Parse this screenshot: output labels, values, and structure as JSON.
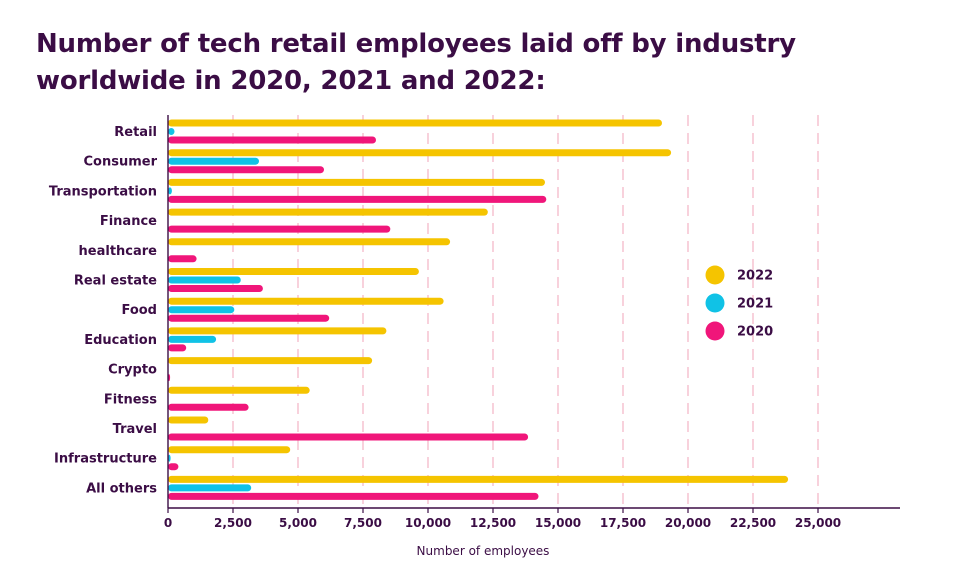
{
  "chart_data": {
    "type": "bar",
    "orientation": "horizontal",
    "title": "Number of tech retail employees laid off by industry worldwide in 2020, 2021 and 2022:",
    "xlabel": "Number of employees",
    "ylabel": "",
    "xlim": [
      0,
      28000
    ],
    "x_ticks": [
      0,
      2500,
      5000,
      7500,
      10000,
      12500,
      15000,
      17500,
      20000,
      22500,
      25000
    ],
    "x_tick_labels": [
      "0",
      "2,500",
      "5,000",
      "7,500",
      "10,000",
      "12,500",
      "15,000",
      "17,500",
      "20,000",
      "22,500",
      "25,000"
    ],
    "grid": "vertical dashed",
    "legend_position": "right",
    "categories": [
      "Retail",
      "Consumer",
      "Transportation",
      "Finance",
      "healthcare",
      "Real estate",
      "Food",
      "Education",
      "Crypto",
      "Fitness",
      "Travel",
      "Infrastructure",
      "All others"
    ],
    "series": [
      {
        "name": "2022",
        "color": "#f5c400",
        "values": [
          19000,
          19350,
          14500,
          12300,
          10850,
          9650,
          10600,
          8400,
          7850,
          5450,
          1550,
          4700,
          23850
        ]
      },
      {
        "name": "2021",
        "color": "#10c2e6",
        "values": [
          250,
          3500,
          150,
          0,
          0,
          2800,
          2550,
          1850,
          0,
          0,
          0,
          100,
          3200
        ]
      },
      {
        "name": "2020",
        "color": "#f0167a",
        "values": [
          8000,
          6000,
          14550,
          8550,
          1100,
          3650,
          6200,
          700,
          80,
          3100,
          13850,
          400,
          14250
        ]
      }
    ]
  }
}
